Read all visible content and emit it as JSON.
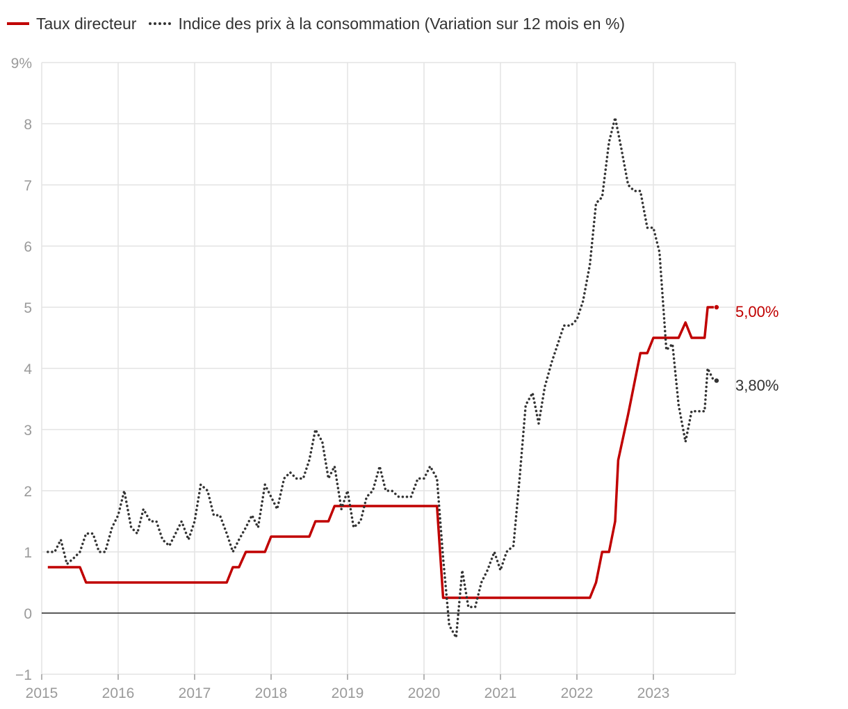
{
  "legend": {
    "policy_rate": "Taux directeur",
    "cpi": "Indice des prix à la consommation (Variation sur 12 mois en %)"
  },
  "labels": {
    "policy_rate_end": "5,00%",
    "cpi_end": "3,80%"
  },
  "colors": {
    "policy_rate": "#c00000",
    "cpi": "#333333",
    "grid": "#e3e3e3",
    "tick": "#9a9a9a",
    "zero_line": "#222222"
  },
  "chart_data": {
    "type": "line",
    "title": "",
    "xlabel": "",
    "ylabel": "",
    "xlim": [
      2015.0,
      2023.92
    ],
    "ylim": [
      -1,
      9
    ],
    "x_ticks": [
      "2015",
      "2016",
      "2017",
      "2018",
      "2019",
      "2020",
      "2021",
      "2022",
      "2023"
    ],
    "y_ticks": [
      "−1",
      "0",
      "1",
      "2",
      "3",
      "4",
      "5",
      "6",
      "7",
      "8",
      "9%"
    ],
    "legend_position": "top-left",
    "series": [
      {
        "name": "Taux directeur",
        "style": "solid",
        "points": [
          [
            2015.08,
            0.75
          ],
          [
            2015.5,
            0.75
          ],
          [
            2015.58,
            0.5
          ],
          [
            2017.42,
            0.5
          ],
          [
            2017.5,
            0.75
          ],
          [
            2017.58,
            0.75
          ],
          [
            2017.67,
            1.0
          ],
          [
            2017.92,
            1.0
          ],
          [
            2018.0,
            1.25
          ],
          [
            2018.5,
            1.25
          ],
          [
            2018.58,
            1.5
          ],
          [
            2018.75,
            1.5
          ],
          [
            2018.83,
            1.75
          ],
          [
            2020.17,
            1.75
          ],
          [
            2020.25,
            0.25
          ],
          [
            2022.17,
            0.25
          ],
          [
            2022.25,
            0.5
          ],
          [
            2022.33,
            1.0
          ],
          [
            2022.42,
            1.0
          ],
          [
            2022.5,
            1.5
          ],
          [
            2022.54,
            2.5
          ],
          [
            2022.67,
            3.25
          ],
          [
            2022.75,
            3.75
          ],
          [
            2022.83,
            4.25
          ],
          [
            2022.92,
            4.25
          ],
          [
            2023.0,
            4.5
          ],
          [
            2023.33,
            4.5
          ],
          [
            2023.42,
            4.75
          ],
          [
            2023.5,
            4.5
          ],
          [
            2023.67,
            4.5
          ],
          [
            2023.71,
            5.0
          ],
          [
            2023.79,
            5.0
          ]
        ]
      },
      {
        "name": "Indice des prix à la consommation (Variation sur 12 mois en %)",
        "style": "dotted",
        "points": [
          [
            2015.08,
            1.0
          ],
          [
            2015.17,
            1.0
          ],
          [
            2015.25,
            1.2
          ],
          [
            2015.33,
            0.8
          ],
          [
            2015.42,
            0.9
          ],
          [
            2015.5,
            1.0
          ],
          [
            2015.58,
            1.3
          ],
          [
            2015.67,
            1.3
          ],
          [
            2015.75,
            1.0
          ],
          [
            2015.83,
            1.0
          ],
          [
            2015.92,
            1.4
          ],
          [
            2016.0,
            1.6
          ],
          [
            2016.08,
            2.0
          ],
          [
            2016.17,
            1.4
          ],
          [
            2016.25,
            1.3
          ],
          [
            2016.33,
            1.7
          ],
          [
            2016.42,
            1.5
          ],
          [
            2016.5,
            1.5
          ],
          [
            2016.58,
            1.2
          ],
          [
            2016.67,
            1.1
          ],
          [
            2016.75,
            1.3
          ],
          [
            2016.83,
            1.5
          ],
          [
            2016.92,
            1.2
          ],
          [
            2017.0,
            1.5
          ],
          [
            2017.08,
            2.1
          ],
          [
            2017.17,
            2.0
          ],
          [
            2017.25,
            1.6
          ],
          [
            2017.33,
            1.6
          ],
          [
            2017.42,
            1.3
          ],
          [
            2017.5,
            1.0
          ],
          [
            2017.58,
            1.2
          ],
          [
            2017.67,
            1.4
          ],
          [
            2017.75,
            1.6
          ],
          [
            2017.83,
            1.4
          ],
          [
            2017.92,
            2.1
          ],
          [
            2018.0,
            1.9
          ],
          [
            2018.08,
            1.7
          ],
          [
            2018.17,
            2.2
          ],
          [
            2018.25,
            2.3
          ],
          [
            2018.33,
            2.2
          ],
          [
            2018.42,
            2.2
          ],
          [
            2018.5,
            2.5
          ],
          [
            2018.58,
            3.0
          ],
          [
            2018.67,
            2.8
          ],
          [
            2018.75,
            2.2
          ],
          [
            2018.83,
            2.4
          ],
          [
            2018.92,
            1.7
          ],
          [
            2019.0,
            2.0
          ],
          [
            2019.08,
            1.4
          ],
          [
            2019.17,
            1.5
          ],
          [
            2019.25,
            1.9
          ],
          [
            2019.33,
            2.0
          ],
          [
            2019.42,
            2.4
          ],
          [
            2019.5,
            2.0
          ],
          [
            2019.58,
            2.0
          ],
          [
            2019.67,
            1.9
          ],
          [
            2019.75,
            1.9
          ],
          [
            2019.83,
            1.9
          ],
          [
            2019.92,
            2.2
          ],
          [
            2020.0,
            2.2
          ],
          [
            2020.08,
            2.4
          ],
          [
            2020.17,
            2.2
          ],
          [
            2020.25,
            0.9
          ],
          [
            2020.33,
            -0.2
          ],
          [
            2020.42,
            -0.4
          ],
          [
            2020.5,
            0.7
          ],
          [
            2020.58,
            0.1
          ],
          [
            2020.67,
            0.1
          ],
          [
            2020.75,
            0.5
          ],
          [
            2020.83,
            0.7
          ],
          [
            2020.92,
            1.0
          ],
          [
            2021.0,
            0.7
          ],
          [
            2021.08,
            1.0
          ],
          [
            2021.17,
            1.1
          ],
          [
            2021.25,
            2.2
          ],
          [
            2021.33,
            3.4
          ],
          [
            2021.42,
            3.6
          ],
          [
            2021.5,
            3.1
          ],
          [
            2021.58,
            3.7
          ],
          [
            2021.67,
            4.1
          ],
          [
            2021.75,
            4.4
          ],
          [
            2021.83,
            4.7
          ],
          [
            2021.92,
            4.7
          ],
          [
            2022.0,
            4.8
          ],
          [
            2022.08,
            5.1
          ],
          [
            2022.17,
            5.7
          ],
          [
            2022.25,
            6.7
          ],
          [
            2022.33,
            6.8
          ],
          [
            2022.42,
            7.7
          ],
          [
            2022.5,
            8.1
          ],
          [
            2022.58,
            7.6
          ],
          [
            2022.67,
            7.0
          ],
          [
            2022.75,
            6.9
          ],
          [
            2022.83,
            6.9
          ],
          [
            2022.92,
            6.3
          ],
          [
            2023.0,
            6.3
          ],
          [
            2023.08,
            5.9
          ],
          [
            2023.17,
            4.3
          ],
          [
            2023.25,
            4.4
          ],
          [
            2023.33,
            3.4
          ],
          [
            2023.42,
            2.8
          ],
          [
            2023.5,
            3.3
          ],
          [
            2023.58,
            3.3
          ],
          [
            2023.67,
            3.3
          ],
          [
            2023.71,
            4.0
          ],
          [
            2023.79,
            3.8
          ]
        ]
      }
    ]
  }
}
